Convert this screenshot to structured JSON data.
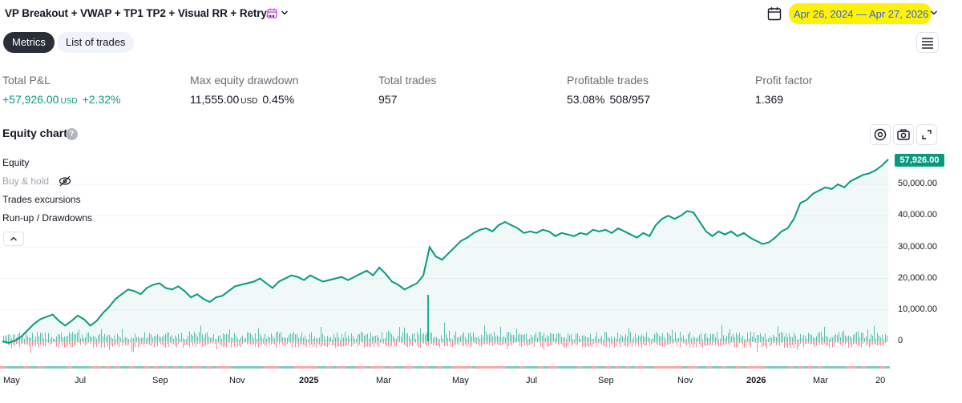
{
  "header": {
    "strategy_title": "VP Breakout + VWAP + TP1 TP2 + Visual RR + Retry...",
    "date_range": "Apr 26, 2024 — Apr 27, 2026",
    "icons": [
      "calendar-icon",
      "chevron-down-icon",
      "menu-icon"
    ],
    "highlight_color": "#fff200",
    "date_color": "#2962ff"
  },
  "tabs": {
    "metrics": "Metrics",
    "list_of_trades": "List of trades"
  },
  "metrics": [
    {
      "label": "Total P&L",
      "value": "+57,926.00",
      "unit": "USD",
      "pct": "+2.32%",
      "color": "#089981"
    },
    {
      "label": "Max equity drawdown",
      "value": "11,555.00",
      "unit": "USD",
      "pct": "0.45%"
    },
    {
      "label": "Total trades",
      "value": "957",
      "unit": "",
      "pct": ""
    },
    {
      "label": "Profitable trades",
      "value": "53.08%",
      "unit": "",
      "pct": "508/957"
    },
    {
      "label": "Profit factor",
      "value": "1.369",
      "unit": "",
      "pct": ""
    }
  ],
  "equity": {
    "title": "Equity chart",
    "help_glyph": "?",
    "legend": [
      "Equity",
      "Buy & hold",
      "Trades excursions",
      "Run-up / Drawdowns"
    ],
    "last_value_label": "57,926.00",
    "line_color": "#089981"
  },
  "chart_data": {
    "type": "area",
    "x_ticks": [
      "May",
      "Jul",
      "Sep",
      "Nov",
      "2025",
      "Mar",
      "May",
      "Jul",
      "Sep",
      "Nov",
      "2026",
      "Mar",
      "20"
    ],
    "y_ticks": [
      "50,000.00",
      "40,000.00",
      "30,000.00",
      "20,000.00",
      "10,000.00",
      "0"
    ],
    "ylim": [
      0,
      55000
    ],
    "series": [
      {
        "values": [
          0,
          -500,
          200,
          1500,
          3500,
          5500,
          7000,
          7800,
          8500,
          6500,
          5000,
          6500,
          8200,
          7000,
          5000,
          6500,
          9000,
          11000,
          13500,
          15000,
          16500,
          16000,
          15000,
          17000,
          18000,
          18500,
          17000,
          16500,
          17500,
          16000,
          14000,
          15000,
          13500,
          12500,
          14000,
          14500,
          16000,
          17500,
          18000,
          18500,
          19000,
          20000,
          18500,
          17000,
          19000,
          20000,
          21000,
          20500,
          19500,
          21000,
          20000,
          19000,
          19500,
          20000,
          20500,
          19500,
          20500,
          21500,
          22500,
          21000,
          23500,
          21500,
          19000,
          18000,
          16500,
          17500,
          18500,
          21000,
          30000,
          27000,
          26000,
          28000,
          30000,
          32000,
          33000,
          34500,
          35500,
          36000,
          35000,
          37000,
          38000,
          37000,
          36000,
          34500,
          35000,
          34500,
          35500,
          35000,
          33500,
          34500,
          34000,
          33500,
          34500,
          34000,
          35500,
          35000,
          35500,
          34500,
          36000,
          35000,
          34000,
          33000,
          34500,
          33500,
          37000,
          39000,
          40000,
          39000,
          40000,
          41500,
          41000,
          38000,
          35000,
          33500,
          35000,
          34000,
          35000,
          33500,
          34500,
          33000,
          32000,
          31000,
          31500,
          33000,
          35000,
          36000,
          39000,
          44000,
          45000,
          47000,
          48000,
          49000,
          48500,
          50000,
          49000,
          51000,
          52000,
          53000,
          53500,
          54500,
          56000,
          57926
        ]
      }
    ]
  }
}
